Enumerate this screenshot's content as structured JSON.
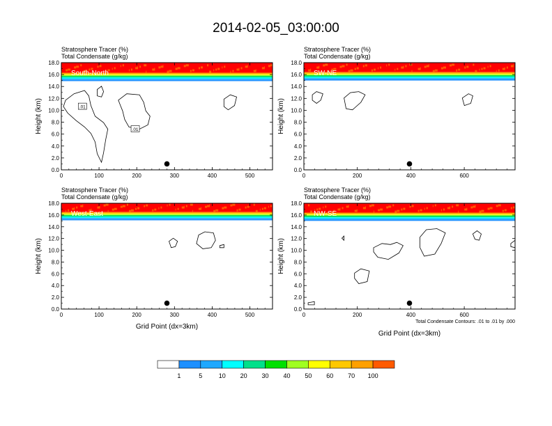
{
  "title": "2014-02-05_03:00:00",
  "colors": {
    "levels": [
      "#ffffff",
      "#1e90ff",
      "#1ea8ff",
      "#00ffff",
      "#00e08a",
      "#00e000",
      "#a0ff20",
      "#ffff00",
      "#ffc800",
      "#ffa000",
      "#ff5a00",
      "#ff0000"
    ],
    "condensate_contour": "#000000"
  },
  "colorbar": {
    "labels": [
      "1",
      "5",
      "10",
      "20",
      "30",
      "40",
      "50",
      "60",
      "70",
      "100"
    ]
  },
  "footnote": "Total Condensate Contours: .01 to .01 by .000",
  "panels": [
    {
      "label": "South-North",
      "line1": "Stratosphere Tracer   (%)",
      "line2": "Total Condensate   (g/kg)",
      "ylabel": "Height (km)",
      "xlabel": "",
      "xmax": 560,
      "xticks": [
        "0",
        "100",
        "200",
        "300",
        "400",
        "500"
      ],
      "yticks": [
        "0.0",
        "2.0",
        "4.0",
        "6.0",
        "8.0",
        "10.0",
        "12.0",
        "14.0",
        "16.0",
        "18.0"
      ],
      "marker_x": 280,
      "contour_labels": [
        ".01",
        ".01"
      ]
    },
    {
      "label": "SW-NE",
      "line1": "Stratosphere Tracer   (%)",
      "line2": "Total Condensate   (g/kg)",
      "ylabel": "Height (km)",
      "xlabel": "",
      "xmax": 790,
      "xticks": [
        "0",
        "200",
        "400",
        "600"
      ],
      "yticks": [
        "0.0",
        "2.0",
        "4.0",
        "6.0",
        "8.0",
        "10.0",
        "12.0",
        "14.0",
        "16.0",
        "18.0"
      ],
      "marker_x": 395,
      "contour_labels": []
    },
    {
      "label": "West-East",
      "line1": "Stratosphere Tracer   (%)",
      "line2": "Total Condensate   (g/kg)",
      "ylabel": "Height (km)",
      "xlabel": "Grid Point (dx=3km)",
      "xmax": 560,
      "xticks": [
        "0",
        "100",
        "200",
        "300",
        "400",
        "500"
      ],
      "yticks": [
        "0.0",
        "2.0",
        "4.0",
        "6.0",
        "8.0",
        "10.0",
        "12.0",
        "14.0",
        "16.0",
        "18.0"
      ],
      "marker_x": 280,
      "contour_labels": []
    },
    {
      "label": "NW-SE",
      "line1": "Stratosphere Tracer   (%)",
      "line2": "Total Condensate   (g/kg)",
      "ylabel": "Height (km)",
      "xlabel": "Grid Point (dx=3km)",
      "xmax": 790,
      "xticks": [
        "0",
        "200",
        "400",
        "600"
      ],
      "yticks": [
        "0.0",
        "2.0",
        "4.0",
        "6.0",
        "8.0",
        "10.0",
        "12.0",
        "14.0",
        "16.0",
        "18.0"
      ],
      "marker_x": 395,
      "contour_labels": []
    }
  ],
  "chart_data": [
    {
      "type": "heatmap",
      "title": "South-North",
      "xlabel": "",
      "ylabel": "Height (km)",
      "xlim": [
        0,
        560
      ],
      "ylim": [
        0,
        18
      ],
      "bands": [
        {
          "level": "100",
          "y": [
            16.3,
            18
          ]
        },
        {
          "level": "70",
          "y": [
            16.1,
            16.3
          ]
        },
        {
          "level": "60",
          "y": [
            16.0,
            16.1
          ]
        },
        {
          "level": "50",
          "y": [
            15.9,
            16.0
          ]
        },
        {
          "level": "40",
          "y": [
            15.8,
            15.9
          ]
        },
        {
          "level": "30",
          "y": [
            15.7,
            15.8
          ]
        },
        {
          "level": "20",
          "y": [
            15.5,
            15.7
          ]
        },
        {
          "level": "10",
          "y": [
            15.3,
            15.5
          ]
        },
        {
          "level": "5",
          "y": [
            15.1,
            15.3
          ]
        },
        {
          "level": "1",
          "y": [
            14.9,
            15.1
          ]
        }
      ],
      "marker": {
        "x": 280,
        "y": 1.0
      }
    },
    {
      "type": "heatmap",
      "title": "SW-NE",
      "xlabel": "",
      "ylabel": "Height (km)",
      "xlim": [
        0,
        790
      ],
      "ylim": [
        0,
        18
      ],
      "bands": [
        {
          "level": "100",
          "y": [
            16.4,
            18
          ]
        },
        {
          "level": "70",
          "y": [
            16.2,
            16.4
          ]
        },
        {
          "level": "60",
          "y": [
            16.1,
            16.2
          ]
        },
        {
          "level": "50",
          "y": [
            16.0,
            16.1
          ]
        },
        {
          "level": "40",
          "y": [
            15.9,
            16.0
          ]
        },
        {
          "level": "30",
          "y": [
            15.8,
            15.9
          ]
        },
        {
          "level": "20",
          "y": [
            15.6,
            15.8
          ]
        },
        {
          "level": "10",
          "y": [
            15.4,
            15.6
          ]
        },
        {
          "level": "5",
          "y": [
            15.2,
            15.4
          ]
        },
        {
          "level": "1",
          "y": [
            15.0,
            15.2
          ]
        }
      ],
      "marker": {
        "x": 395,
        "y": 1.0
      }
    },
    {
      "type": "heatmap",
      "title": "West-East",
      "xlabel": "Grid Point (dx=3km)",
      "ylabel": "Height (km)",
      "xlim": [
        0,
        560
      ],
      "ylim": [
        0,
        18
      ],
      "bands": [
        {
          "level": "100",
          "y": [
            16.5,
            18
          ]
        },
        {
          "level": "70",
          "y": [
            16.3,
            16.5
          ]
        },
        {
          "level": "60",
          "y": [
            16.2,
            16.3
          ]
        },
        {
          "level": "50",
          "y": [
            16.1,
            16.2
          ]
        },
        {
          "level": "40",
          "y": [
            16.0,
            16.1
          ]
        },
        {
          "level": "30",
          "y": [
            15.9,
            16.0
          ]
        },
        {
          "level": "20",
          "y": [
            15.7,
            15.9
          ]
        },
        {
          "level": "10",
          "y": [
            15.5,
            15.7
          ]
        },
        {
          "level": "5",
          "y": [
            15.3,
            15.5
          ]
        },
        {
          "level": "1",
          "y": [
            15.1,
            15.3
          ]
        }
      ],
      "marker": {
        "x": 280,
        "y": 1.0
      }
    },
    {
      "type": "heatmap",
      "title": "NW-SE",
      "xlabel": "Grid Point (dx=3km)",
      "ylabel": "Height (km)",
      "xlim": [
        0,
        790
      ],
      "ylim": [
        0,
        18
      ],
      "bands": [
        {
          "level": "100",
          "y": [
            16.4,
            18
          ]
        },
        {
          "level": "70",
          "y": [
            16.2,
            16.4
          ]
        },
        {
          "level": "60",
          "y": [
            16.1,
            16.2
          ]
        },
        {
          "level": "50",
          "y": [
            16.0,
            16.1
          ]
        },
        {
          "level": "40",
          "y": [
            15.9,
            16.0
          ]
        },
        {
          "level": "30",
          "y": [
            15.8,
            15.9
          ]
        },
        {
          "level": "20",
          "y": [
            15.6,
            15.8
          ]
        },
        {
          "level": "10",
          "y": [
            15.4,
            15.6
          ]
        },
        {
          "level": "5",
          "y": [
            15.2,
            15.4
          ]
        },
        {
          "level": "1",
          "y": [
            15.0,
            15.2
          ]
        }
      ],
      "marker": {
        "x": 395,
        "y": 1.0
      }
    }
  ]
}
